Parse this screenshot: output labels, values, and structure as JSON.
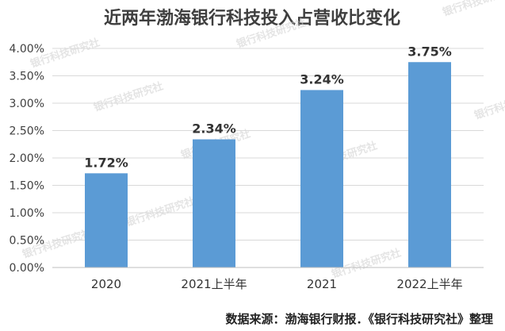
{
  "chart_data": {
    "type": "bar",
    "title": "近两年渤海银行科技投入占营收比变化",
    "categories": [
      "2020",
      "2021上半年",
      "2021",
      "2022上半年"
    ],
    "values": [
      1.72,
      2.34,
      3.24,
      3.75
    ],
    "data_labels": [
      "1.72%",
      "2.34%",
      "3.24%",
      "3.75%"
    ],
    "ylim": [
      0,
      4
    ],
    "yticks": [
      "0.00%",
      "0.50%",
      "1.00%",
      "1.50%",
      "2.00%",
      "2.50%",
      "3.00%",
      "3.50%",
      "4.00%"
    ],
    "xlabel": "",
    "ylabel": "",
    "grid": true,
    "bar_color": "#5b9bd5"
  },
  "source_note": "数据来源：渤海银行财报．《银行科技研究社》整理",
  "watermark": "银行科技研究社"
}
